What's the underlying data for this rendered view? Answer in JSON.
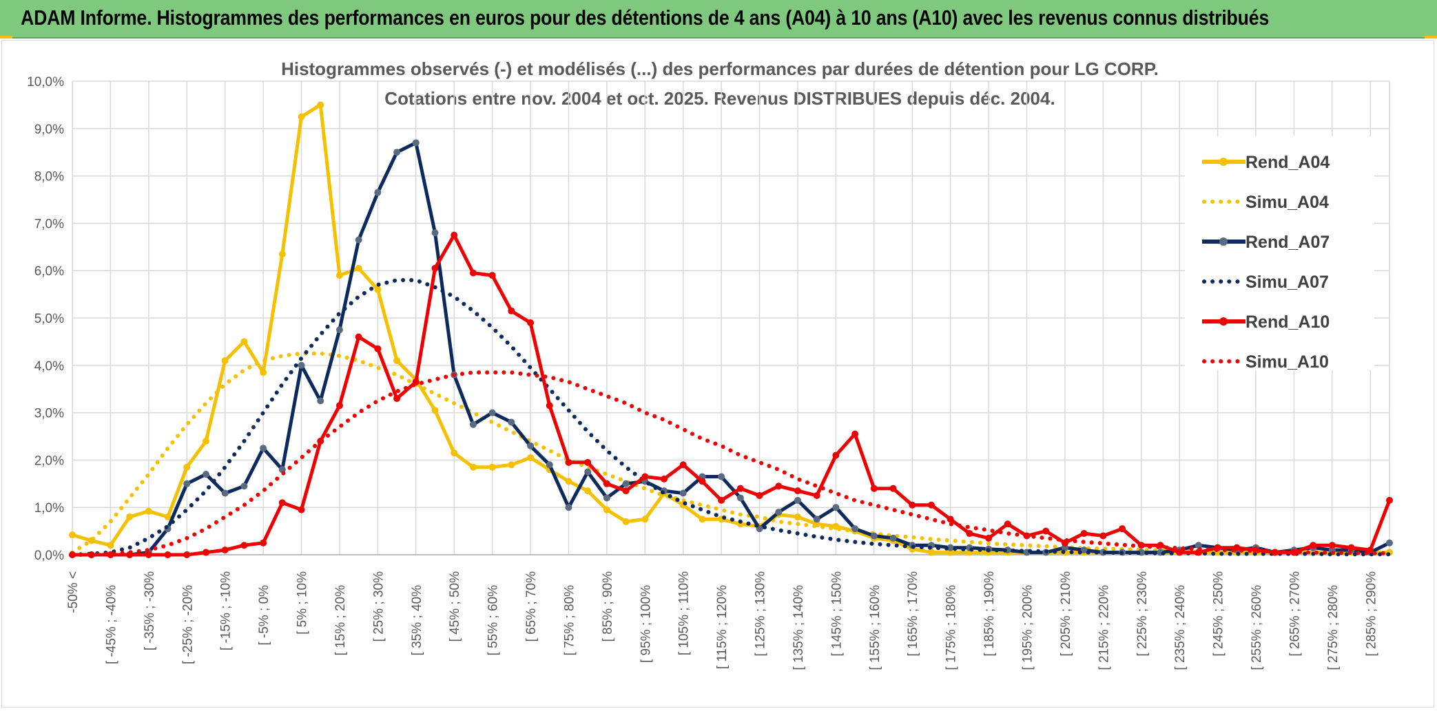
{
  "banner": {
    "title": "ADAM Informe. Histogrammes des performances en euros pour des détentions de 4 ans (A04) à 10 ans (A10) avec les revenus connus distribués"
  },
  "chart_data": {
    "type": "line",
    "title": "Histogrammes observés (-) et modélisés (...) des performances par durées de détention pour LG CORP.",
    "subtitle": "Cotations entre nov. 2004 et oct. 2025. Revenus DISTRIBUES depuis déc. 2004.",
    "xlabel": "",
    "ylabel": "",
    "ylim": [
      0,
      10
    ],
    "y_unit": "%",
    "y_ticks": [
      "0,0%",
      "1,0%",
      "2,0%",
      "3,0%",
      "4,0%",
      "5,0%",
      "6,0%",
      "7,0%",
      "8,0%",
      "9,0%",
      "10,0%"
    ],
    "grid": true,
    "legend_position": "right",
    "x_tick_labels": [
      "-50% <",
      "[ -45% ; -40%",
      "[ -35% ; -30%",
      "[ -25% ; -20%",
      "[ -15% ; -10%",
      "[ -5% ; 0%",
      "[ 5% ; 10%",
      "[ 15% ; 20%",
      "[ 25% ; 30%",
      "[ 35% ; 40%",
      "[ 45% ; 50%",
      "[ 55% ; 60%",
      "[ 65% ; 70%",
      "[ 75% ; 80%",
      "[ 85% ; 90%",
      "[ 95% ; 100%",
      "[ 105% ; 110%",
      "[ 115% ; 120%",
      "[ 125% ; 130%",
      "[ 135% ; 140%",
      "[ 145% ; 150%",
      "[ 155% ; 160%",
      "[ 165% ; 170%",
      "[ 175% ; 180%",
      "[ 185% ; 190%",
      "[ 195% ; 200%",
      "[ 205% ; 210%",
      "[ 215% ; 220%",
      "[ 225% ; 230%",
      "[ 235% ; 240%",
      "[ 245% ; 250%",
      "[ 255% ; 260%",
      "[ 265% ; 270%",
      "[ 275% ; 280%",
      "[ 285% ; 290%"
    ],
    "series": [
      {
        "name": "Rend_A04",
        "style": "solid",
        "color": "#f5c000",
        "values": [
          0.42,
          0.3,
          0.2,
          0.8,
          0.92,
          0.8,
          1.85,
          2.4,
          4.1,
          4.5,
          3.85,
          6.35,
          9.25,
          9.5,
          5.9,
          6.05,
          5.6,
          4.1,
          3.7,
          3.05,
          2.15,
          1.85,
          1.85,
          1.9,
          2.05,
          1.8,
          1.55,
          1.35,
          0.95,
          0.7,
          0.75,
          1.3,
          1.05,
          0.75,
          0.75,
          0.65,
          0.6,
          0.85,
          0.8,
          0.65,
          0.6,
          0.5,
          0.35,
          0.3,
          0.12,
          0.05,
          0.05,
          0.05,
          0.05,
          0.05,
          0.05,
          0.05,
          0.05,
          0.05,
          0.05,
          0.05,
          0.05,
          0.05,
          0.05,
          0.05,
          0.05,
          0.05,
          0.05,
          0.05,
          0.05,
          0.05,
          0.05,
          0.05,
          0.05,
          0.05
        ]
      },
      {
        "name": "Simu_A04",
        "style": "dotted",
        "color": "#f5c000",
        "values": [
          0.05,
          0.3,
          0.7,
          1.2,
          1.7,
          2.25,
          2.75,
          3.2,
          3.6,
          3.9,
          4.1,
          4.2,
          4.25,
          4.25,
          4.2,
          4.1,
          3.95,
          3.8,
          3.6,
          3.4,
          3.2,
          3.0,
          2.8,
          2.6,
          2.4,
          2.2,
          2.0,
          1.85,
          1.7,
          1.55,
          1.4,
          1.25,
          1.15,
          1.05,
          0.95,
          0.85,
          0.8,
          0.7,
          0.65,
          0.6,
          0.55,
          0.5,
          0.45,
          0.4,
          0.37,
          0.33,
          0.3,
          0.27,
          0.24,
          0.22,
          0.2,
          0.18,
          0.16,
          0.14,
          0.13,
          0.12,
          0.1,
          0.09,
          0.08,
          0.07,
          0.06,
          0.05,
          0.05,
          0.04,
          0.04,
          0.03,
          0.03,
          0.03,
          0.02,
          0.02
        ]
      },
      {
        "name": "Rend_A07",
        "style": "solid",
        "color": "#0d2a5e",
        "values": [
          0,
          0,
          0,
          0,
          0.05,
          0.55,
          1.5,
          1.7,
          1.3,
          1.45,
          2.25,
          1.8,
          4.0,
          3.25,
          4.75,
          6.65,
          7.65,
          8.5,
          8.7,
          6.8,
          3.8,
          2.75,
          3.0,
          2.8,
          2.3,
          1.9,
          1.0,
          1.75,
          1.2,
          1.5,
          1.55,
          1.35,
          1.3,
          1.65,
          1.65,
          1.2,
          0.55,
          0.9,
          1.15,
          0.75,
          1.0,
          0.55,
          0.4,
          0.35,
          0.2,
          0.2,
          0.15,
          0.15,
          0.12,
          0.1,
          0.05,
          0.05,
          0.15,
          0.1,
          0.05,
          0.05,
          0.05,
          0.05,
          0.1,
          0.2,
          0.15,
          0.1,
          0.15,
          0.05,
          0.1,
          0.15,
          0.1,
          0.1,
          0.05,
          0.25
        ]
      },
      {
        "name": "Simu_A07",
        "style": "dotted",
        "color": "#0d2a5e",
        "values": [
          0.0,
          0.02,
          0.05,
          0.15,
          0.35,
          0.6,
          0.95,
          1.35,
          1.85,
          2.4,
          3.0,
          3.6,
          4.15,
          4.65,
          5.1,
          5.45,
          5.7,
          5.8,
          5.8,
          5.65,
          5.45,
          5.15,
          4.8,
          4.4,
          3.95,
          3.5,
          3.05,
          2.6,
          2.2,
          1.85,
          1.55,
          1.3,
          1.1,
          0.95,
          0.8,
          0.7,
          0.6,
          0.52,
          0.45,
          0.38,
          0.32,
          0.27,
          0.23,
          0.2,
          0.17,
          0.15,
          0.13,
          0.11,
          0.1,
          0.09,
          0.08,
          0.07,
          0.06,
          0.05,
          0.05,
          0.04,
          0.04,
          0.03,
          0.03,
          0.03,
          0.02,
          0.02,
          0.02,
          0.02,
          0.02,
          0.02,
          0.01,
          0.01,
          0.01,
          0.01
        ]
      },
      {
        "name": "Rend_A10",
        "style": "solid",
        "color": "#ee0000",
        "values": [
          0,
          0,
          0,
          0,
          0,
          0,
          0,
          0.05,
          0.1,
          0.2,
          0.25,
          1.1,
          0.95,
          2.4,
          3.15,
          4.6,
          4.35,
          3.3,
          3.65,
          6.05,
          6.75,
          5.95,
          5.9,
          5.15,
          4.9,
          3.15,
          1.95,
          1.95,
          1.5,
          1.35,
          1.65,
          1.6,
          1.9,
          1.55,
          1.15,
          1.4,
          1.25,
          1.45,
          1.35,
          1.25,
          2.1,
          2.55,
          1.4,
          1.4,
          1.05,
          1.05,
          0.75,
          0.45,
          0.35,
          0.65,
          0.4,
          0.5,
          0.25,
          0.45,
          0.4,
          0.55,
          0.2,
          0.2,
          0.05,
          0.05,
          0.15,
          0.15,
          0.1,
          0.05,
          0.05,
          0.2,
          0.2,
          0.15,
          0.1,
          1.15
        ]
      },
      {
        "name": "Simu_A10",
        "style": "dotted",
        "color": "#ee0000",
        "values": [
          0.0,
          0.0,
          0.02,
          0.05,
          0.1,
          0.2,
          0.35,
          0.55,
          0.8,
          1.05,
          1.35,
          1.7,
          2.05,
          2.4,
          2.7,
          3.0,
          3.25,
          3.45,
          3.6,
          3.7,
          3.8,
          3.85,
          3.85,
          3.85,
          3.8,
          3.75,
          3.65,
          3.5,
          3.35,
          3.2,
          3.0,
          2.85,
          2.65,
          2.45,
          2.3,
          2.1,
          1.95,
          1.8,
          1.6,
          1.45,
          1.3,
          1.15,
          1.05,
          0.95,
          0.85,
          0.75,
          0.65,
          0.58,
          0.52,
          0.45,
          0.4,
          0.35,
          0.31,
          0.27,
          0.24,
          0.21,
          0.18,
          0.16,
          0.14,
          0.12,
          0.1,
          0.09,
          0.08,
          0.07,
          0.06,
          0.05,
          0.04,
          0.04,
          0.03,
          0.03
        ]
      }
    ]
  }
}
